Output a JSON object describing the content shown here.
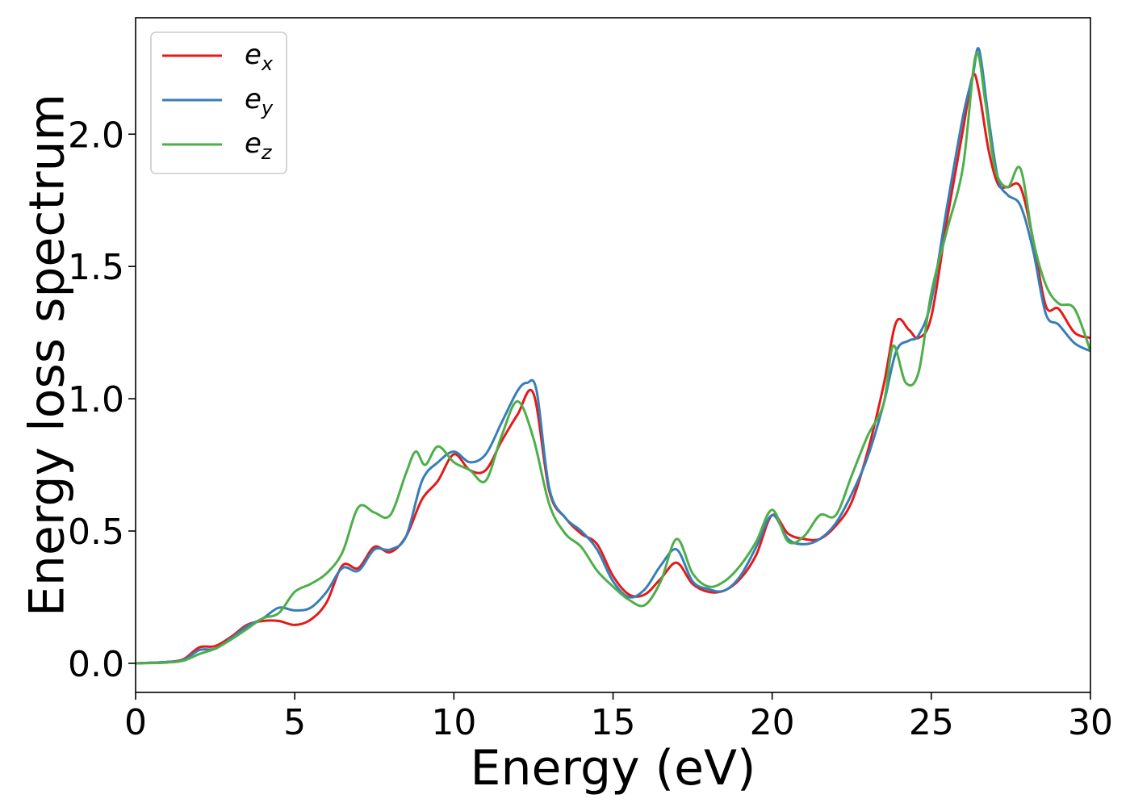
{
  "chart_data": {
    "type": "line",
    "title": "",
    "xlabel": "Energy (eV)",
    "ylabel": "Energy loss spectrum",
    "xlim": [
      0,
      30
    ],
    "ylim": [
      -0.11,
      2.44
    ],
    "xticks": [
      0,
      5,
      10,
      15,
      20,
      25,
      30
    ],
    "xtick_labels": [
      "0",
      "5",
      "10",
      "15",
      "20",
      "25",
      "30"
    ],
    "yticks": [
      0.0,
      0.5,
      1.0,
      1.5,
      2.0
    ],
    "ytick_labels": [
      "0.0",
      "0.5",
      "1.0",
      "1.5",
      "2.0"
    ],
    "grid": false,
    "legend_position": "top-left",
    "series": [
      {
        "name": "e_x",
        "label_base": "e",
        "label_sub": "x",
        "color": "#e41a1c",
        "x": [
          0,
          0.5,
          1,
          1.5,
          2,
          2.5,
          3,
          3.5,
          4,
          4.5,
          5,
          5.5,
          6,
          6.5,
          7,
          7.5,
          8,
          8.5,
          9,
          9.5,
          10,
          10.5,
          11,
          11.5,
          12,
          12.5,
          13,
          13.5,
          14,
          14.5,
          15,
          15.5,
          16,
          16.5,
          17,
          17.5,
          18,
          18.5,
          19,
          19.5,
          20,
          20.5,
          21,
          21.5,
          22,
          22.5,
          23,
          23.5,
          23.9,
          24.3,
          24.6,
          25,
          25.5,
          26,
          26.3,
          26.5,
          26.8,
          27.1,
          27.4,
          27.8,
          28.2,
          28.6,
          29,
          29.5,
          30
        ],
        "y": [
          0,
          0.002,
          0.005,
          0.015,
          0.06,
          0.065,
          0.1,
          0.145,
          0.16,
          0.16,
          0.145,
          0.165,
          0.23,
          0.37,
          0.36,
          0.44,
          0.42,
          0.48,
          0.62,
          0.69,
          0.79,
          0.73,
          0.73,
          0.84,
          0.94,
          1.02,
          0.65,
          0.55,
          0.49,
          0.45,
          0.33,
          0.26,
          0.26,
          0.32,
          0.38,
          0.3,
          0.27,
          0.275,
          0.32,
          0.41,
          0.56,
          0.49,
          0.47,
          0.47,
          0.52,
          0.61,
          0.8,
          1.05,
          1.29,
          1.26,
          1.23,
          1.31,
          1.68,
          2.02,
          2.22,
          2.16,
          1.94,
          1.81,
          1.8,
          1.8,
          1.6,
          1.35,
          1.34,
          1.25,
          1.23
        ]
      },
      {
        "name": "e_y",
        "label_base": "e",
        "label_sub": "y",
        "color": "#377eb8",
        "x": [
          0,
          0.5,
          1,
          1.5,
          2,
          2.5,
          3,
          3.5,
          4,
          4.5,
          5,
          5.5,
          6,
          6.5,
          7,
          7.5,
          8,
          8.5,
          9,
          9.5,
          10,
          10.5,
          11,
          11.5,
          12,
          12.3,
          12.6,
          13,
          13.5,
          14,
          14.5,
          15,
          15.5,
          16,
          16.5,
          17,
          17.5,
          18,
          18.5,
          19,
          19.5,
          20,
          20.5,
          21,
          21.5,
          22,
          22.5,
          23,
          23.5,
          23.9,
          24.3,
          24.6,
          25,
          25.5,
          26,
          26.3,
          26.5,
          26.8,
          27.1,
          27.4,
          27.8,
          28.2,
          28.6,
          29,
          29.5,
          30
        ],
        "y": [
          0,
          0.002,
          0.005,
          0.012,
          0.05,
          0.055,
          0.095,
          0.14,
          0.17,
          0.21,
          0.2,
          0.21,
          0.27,
          0.36,
          0.35,
          0.43,
          0.43,
          0.48,
          0.69,
          0.76,
          0.8,
          0.76,
          0.79,
          0.91,
          1.03,
          1.06,
          1.03,
          0.66,
          0.55,
          0.5,
          0.43,
          0.31,
          0.25,
          0.28,
          0.37,
          0.43,
          0.31,
          0.28,
          0.275,
          0.33,
          0.44,
          0.56,
          0.47,
          0.45,
          0.47,
          0.53,
          0.64,
          0.78,
          0.98,
          1.18,
          1.22,
          1.24,
          1.37,
          1.73,
          2.07,
          2.22,
          2.32,
          2.06,
          1.83,
          1.77,
          1.73,
          1.56,
          1.32,
          1.28,
          1.21,
          1.18
        ]
      },
      {
        "name": "e_z",
        "label_base": "e",
        "label_sub": "z",
        "color": "#4daf4a",
        "x": [
          0,
          0.5,
          1,
          1.5,
          2,
          2.5,
          3,
          3.5,
          4,
          4.5,
          5,
          5.5,
          6,
          6.5,
          7,
          7.5,
          8,
          8.5,
          8.8,
          9.1,
          9.5,
          10,
          10.5,
          11,
          11.5,
          12,
          12.5,
          13,
          13.5,
          14,
          14.5,
          15,
          15.5,
          16,
          16.5,
          17,
          17.5,
          18,
          18.5,
          19,
          19.5,
          20,
          20.5,
          21,
          21.5,
          22,
          22.5,
          23,
          23.5,
          23.8,
          24.2,
          24.6,
          25,
          25.5,
          26,
          26.4,
          26.7,
          27,
          27.4,
          27.8,
          28.2,
          28.6,
          29,
          29.5,
          30
        ],
        "y": [
          0,
          0.001,
          0.003,
          0.01,
          0.035,
          0.055,
          0.09,
          0.13,
          0.17,
          0.19,
          0.27,
          0.3,
          0.34,
          0.42,
          0.59,
          0.57,
          0.56,
          0.72,
          0.8,
          0.75,
          0.82,
          0.76,
          0.73,
          0.69,
          0.86,
          0.99,
          0.85,
          0.6,
          0.49,
          0.44,
          0.35,
          0.29,
          0.24,
          0.22,
          0.31,
          0.47,
          0.34,
          0.29,
          0.31,
          0.37,
          0.46,
          0.58,
          0.46,
          0.48,
          0.56,
          0.56,
          0.71,
          0.86,
          0.98,
          1.2,
          1.06,
          1.1,
          1.4,
          1.64,
          1.88,
          2.3,
          2.12,
          1.87,
          1.8,
          1.87,
          1.6,
          1.43,
          1.36,
          1.34,
          1.18
        ]
      }
    ]
  }
}
